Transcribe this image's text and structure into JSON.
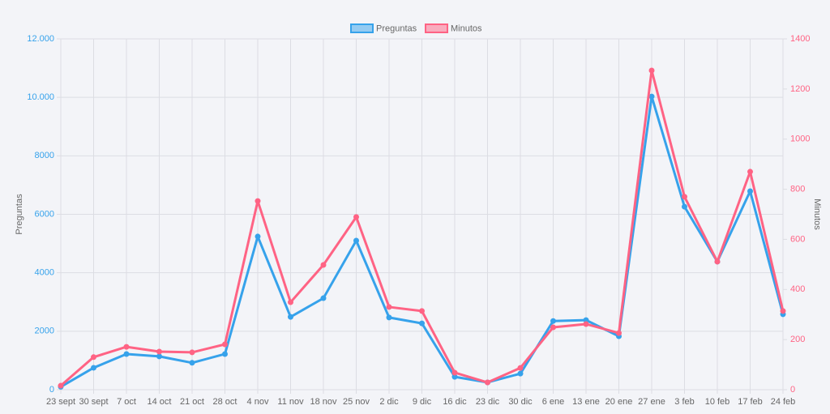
{
  "chart_data": {
    "type": "line",
    "categories": [
      "23 sept",
      "30 sept",
      "7 oct",
      "14 oct",
      "21 oct",
      "28 oct",
      "4 nov",
      "11 nov",
      "18 nov",
      "25 nov",
      "2 dic",
      "9 dic",
      "16 dic",
      "23 dic",
      "30 dic",
      "6 ene",
      "13 ene",
      "20 ene",
      "27 ene",
      "3 feb",
      "10 feb",
      "17 feb",
      "24 feb"
    ],
    "series": [
      {
        "name": "Preguntas",
        "color": "#36a2eb",
        "axis": "y",
        "values": [
          100,
          750,
          1220,
          1140,
          920,
          1220,
          5240,
          2490,
          3130,
          5100,
          2470,
          2270,
          440,
          250,
          550,
          2350,
          2380,
          1830,
          10030,
          6260,
          4380,
          6790,
          2580
        ]
      },
      {
        "name": "Minutos",
        "color": "#ff6384",
        "axis": "y2",
        "values": [
          16,
          130,
          171,
          152,
          149,
          181,
          753,
          349,
          498,
          689,
          330,
          314,
          68,
          29,
          87,
          249,
          262,
          226,
          1274,
          770,
          511,
          870,
          314
        ]
      }
    ],
    "ylabel": "Preguntas",
    "y2label": "Minutos",
    "ylim": [
      0,
      12000
    ],
    "yticks": [
      0,
      2000,
      4000,
      6000,
      8000,
      {
        "value": 10000,
        "label": "10.000"
      },
      {
        "value": 12000,
        "label": "12.000"
      }
    ],
    "y2lim": [
      0,
      1400
    ],
    "y2ticks": [
      0,
      200,
      400,
      600,
      800,
      1000,
      1200,
      1400
    ],
    "grid": true,
    "legend": "top"
  }
}
